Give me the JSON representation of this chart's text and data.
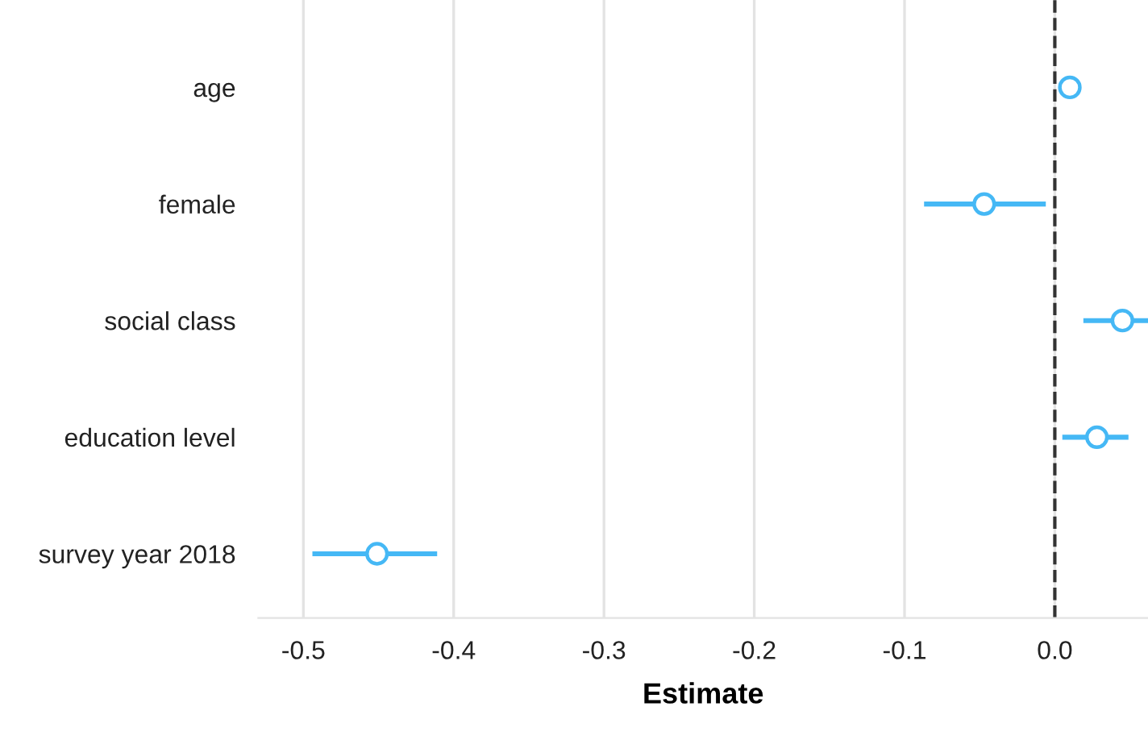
{
  "chart_data": {
    "type": "scatter",
    "orientation": "horizontal",
    "xlabel": "Estimate",
    "categories": [
      "age",
      "female",
      "social class",
      "education level",
      "survey year 2018"
    ],
    "series": [
      {
        "color": "#45b8f5",
        "values": [
          0.01,
          -0.047,
          0.045,
          0.028,
          -0.451
        ],
        "errors": [
          null,
          [
            -0.087,
            -0.006
          ],
          [
            0.019,
            0.062
          ],
          [
            0.005,
            0.049
          ],
          [
            -0.494,
            -0.411
          ]
        ]
      }
    ],
    "xlim": [
      -0.53,
      0.062
    ],
    "xticks": [
      -0.5,
      -0.4,
      -0.3,
      -0.2,
      -0.1,
      {
        "value": 0,
        "label": "0.0"
      }
    ],
    "grid": "x",
    "marker": "circle",
    "ref_lines": [
      {
        "axis": "x",
        "value": 0,
        "color": "#333333",
        "line_style": "dashed"
      }
    ]
  }
}
